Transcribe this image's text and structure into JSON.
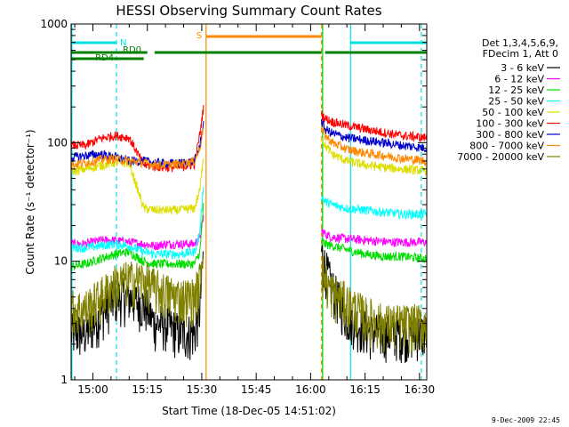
{
  "chart_data": {
    "type": "line",
    "title": "HESSI Observing Summary Count Rates",
    "xlabel": "Start Time (18-Dec-05 14:51:02)",
    "ylabel": "Count Rate (s⁻¹ detector⁻¹)",
    "yscale": "log",
    "ylim": [
      1,
      1000
    ],
    "y_ticks": [
      "1",
      "10",
      "100",
      "1000"
    ],
    "x_range_minutes": [
      54.0,
      152.0
    ],
    "x_ticks": [
      {
        "label": "15:00",
        "min": 60
      },
      {
        "label": "15:15",
        "min": 75
      },
      {
        "label": "15:30",
        "min": 90
      },
      {
        "label": "15:45",
        "min": 105
      },
      {
        "label": "16:00",
        "min": 120
      },
      {
        "label": "16:15",
        "min": 135
      },
      {
        "label": "16:30",
        "min": 150
      }
    ],
    "legend_header": [
      "Det 1,3,4,5,6,9,",
      "FDecim 1, Att 0"
    ],
    "legend_placement": "right",
    "series": [
      {
        "name": "3 - 6 keV",
        "color": "#000000",
        "segments": [
          [
            [
              54,
              2.5
            ],
            [
              58,
              2.5
            ],
            [
              62,
              3.5
            ],
            [
              66,
              5
            ],
            [
              70,
              5
            ],
            [
              73,
              4.5
            ],
            [
              75,
              4
            ],
            [
              77,
              3
            ],
            [
              80,
              3
            ],
            [
              84,
              2.5
            ],
            [
              88,
              2.5
            ],
            [
              89.5,
              4
            ],
            [
              90.5,
              12
            ]
          ],
          [
            [
              123,
              12
            ],
            [
              124,
              9
            ],
            [
              126,
              6
            ],
            [
              128,
              4.5
            ],
            [
              130,
              3.5
            ],
            [
              133,
              3
            ],
            [
              137,
              2.5
            ],
            [
              142,
              2.5
            ],
            [
              145,
              2.5
            ],
            [
              152,
              2.5
            ]
          ]
        ]
      },
      {
        "name": "6 - 12 keV",
        "color": "#ff00ff",
        "segments": [
          [
            [
              54,
              14
            ],
            [
              58,
              14
            ],
            [
              62,
              15
            ],
            [
              66,
              15
            ],
            [
              70,
              14.5
            ],
            [
              74,
              14
            ],
            [
              77,
              13.5
            ],
            [
              80,
              14
            ],
            [
              84,
              14
            ],
            [
              88,
              14
            ],
            [
              89.5,
              16
            ],
            [
              90.5,
              24
            ]
          ],
          [
            [
              123,
              18
            ],
            [
              124,
              17
            ],
            [
              126,
              16
            ],
            [
              130,
              15.5
            ],
            [
              136,
              15
            ],
            [
              142,
              14.5
            ],
            [
              148,
              14.5
            ],
            [
              152,
              14.5
            ]
          ]
        ]
      },
      {
        "name": "12 - 25 keV",
        "color": "#00dd00",
        "segments": [
          [
            [
              54,
              9
            ],
            [
              58,
              9.5
            ],
            [
              62,
              10.5
            ],
            [
              66,
              11.5
            ],
            [
              70,
              12
            ],
            [
              74,
              10
            ],
            [
              77,
              9.5
            ],
            [
              80,
              9.5
            ],
            [
              84,
              9.5
            ],
            [
              88,
              9.5
            ],
            [
              89.5,
              12
            ],
            [
              90.5,
              30
            ]
          ],
          [
            [
              123,
              15
            ],
            [
              124,
              14
            ],
            [
              126,
              13.5
            ],
            [
              130,
              12.5
            ],
            [
              135,
              11.5
            ],
            [
              140,
              11
            ],
            [
              145,
              11
            ],
            [
              152,
              10.5
            ]
          ]
        ]
      },
      {
        "name": "25 - 50 keV",
        "color": "#00ffff",
        "segments": [
          [
            [
              54,
              13
            ],
            [
              58,
              13
            ],
            [
              62,
              13.5
            ],
            [
              66,
              14
            ],
            [
              70,
              13.5
            ],
            [
              74,
              12
            ],
            [
              77,
              11.5
            ],
            [
              80,
              11.5
            ],
            [
              84,
              11.5
            ],
            [
              88,
              12
            ],
            [
              89.5,
              18
            ],
            [
              90.5,
              45
            ]
          ],
          [
            [
              123,
              35
            ],
            [
              124,
              32
            ],
            [
              126,
              30
            ],
            [
              130,
              28
            ],
            [
              135,
              27
            ],
            [
              140,
              26
            ],
            [
              145,
              25
            ],
            [
              152,
              25
            ]
          ]
        ]
      },
      {
        "name": "50 - 100 keV",
        "color": "#dddd00",
        "segments": [
          [
            [
              54,
              57
            ],
            [
              58,
              60
            ],
            [
              62,
              64
            ],
            [
              66,
              68
            ],
            [
              70,
              67
            ],
            [
              74,
              28
            ],
            [
              77,
              27
            ],
            [
              80,
              27
            ],
            [
              84,
              27
            ],
            [
              88,
              28
            ],
            [
              89.5,
              40
            ],
            [
              90.5,
              80
            ]
          ],
          [
            [
              123,
              110
            ],
            [
              124,
              95
            ],
            [
              126,
              80
            ],
            [
              130,
              70
            ],
            [
              135,
              65
            ],
            [
              140,
              62
            ],
            [
              145,
              60
            ],
            [
              152,
              58
            ]
          ]
        ]
      },
      {
        "name": "100 - 300 keV",
        "color": "#ff0000",
        "segments": [
          [
            [
              54,
              95
            ],
            [
              58,
              95
            ],
            [
              62,
              108
            ],
            [
              66,
              115
            ],
            [
              70,
              110
            ],
            [
              74,
              65
            ],
            [
              77,
              63
            ],
            [
              80,
              62
            ],
            [
              84,
              62
            ],
            [
              88,
              66
            ],
            [
              89.5,
              120
            ],
            [
              90.5,
              200
            ]
          ],
          [
            [
              123,
              175
            ],
            [
              124,
              160
            ],
            [
              126,
              150
            ],
            [
              130,
              140
            ],
            [
              135,
              130
            ],
            [
              140,
              122
            ],
            [
              145,
              115
            ],
            [
              152,
              110
            ]
          ]
        ]
      },
      {
        "name": "300 - 800 keV",
        "color": "#0000cc",
        "segments": [
          [
            [
              54,
              75
            ],
            [
              58,
              78
            ],
            [
              62,
              80
            ],
            [
              66,
              76
            ],
            [
              70,
              70
            ],
            [
              74,
              70
            ],
            [
              77,
              68
            ],
            [
              80,
              67
            ],
            [
              84,
              67
            ],
            [
              88,
              70
            ],
            [
              89.5,
              95
            ],
            [
              90.5,
              150
            ]
          ],
          [
            [
              123,
              150
            ],
            [
              124,
              130
            ],
            [
              126,
              120
            ],
            [
              130,
              110
            ],
            [
              135,
              105
            ],
            [
              140,
              100
            ],
            [
              145,
              95
            ],
            [
              152,
              90
            ]
          ]
        ]
      },
      {
        "name": "800 - 7000 keV",
        "color": "#ff8800",
        "segments": [
          [
            [
              54,
              65
            ],
            [
              58,
              68
            ],
            [
              62,
              72
            ],
            [
              66,
              73
            ],
            [
              70,
              70
            ],
            [
              74,
              68
            ],
            [
              77,
              65
            ],
            [
              80,
              65
            ],
            [
              84,
              66
            ],
            [
              88,
              70
            ],
            [
              89.5,
              90
            ],
            [
              90.5,
              140
            ]
          ],
          [
            [
              123,
              130
            ],
            [
              124,
              115
            ],
            [
              126,
              100
            ],
            [
              130,
              88
            ],
            [
              135,
              82
            ],
            [
              140,
              78
            ],
            [
              145,
              74
            ],
            [
              152,
              70
            ]
          ]
        ]
      },
      {
        "name": "7000 - 20000 keV",
        "color": "#808000",
        "segments": [
          [
            [
              54,
              4
            ],
            [
              58,
              4
            ],
            [
              62,
              5
            ],
            [
              66,
              6.5
            ],
            [
              70,
              7
            ],
            [
              74,
              7
            ],
            [
              77,
              6
            ],
            [
              80,
              5.5
            ],
            [
              84,
              5
            ],
            [
              88,
              5
            ],
            [
              89.5,
              7
            ],
            [
              90.5,
              14
            ]
          ],
          [
            [
              123,
              9
            ],
            [
              124,
              7
            ],
            [
              126,
              5.5
            ],
            [
              130,
              4.5
            ],
            [
              135,
              3.5
            ],
            [
              140,
              3
            ],
            [
              145,
              3
            ],
            [
              152,
              3
            ]
          ]
        ]
      }
    ],
    "markers": {
      "lines": [
        {
          "min": 54.2,
          "color": "#00e0e0",
          "style": "solid"
        },
        {
          "min": 66.5,
          "color": "#00e0e0",
          "style": "dashed"
        },
        {
          "min": 91.2,
          "color": "#ff8800",
          "style": "solid"
        },
        {
          "min": 123.0,
          "color": "#ff8800",
          "style": "dashed"
        },
        {
          "min": 123.3,
          "color": "#00cc00",
          "style": "solid"
        },
        {
          "min": 131.0,
          "color": "#00e0e0",
          "style": "solid"
        },
        {
          "min": 150.5,
          "color": "#00e0e0",
          "style": "dashed"
        }
      ],
      "bars": [
        {
          "label": "N",
          "color": "#00e0e0",
          "from": 54,
          "to": 66.5,
          "level": 1
        },
        {
          "label": "",
          "color": "#00e0e0",
          "from": 131,
          "to": 152,
          "level": 1
        },
        {
          "label": "S",
          "color": "#ff8800",
          "from": 91.2,
          "to": 123,
          "level": 0
        },
        {
          "label": "RD0",
          "color": "#008000",
          "from": 54,
          "to": 75,
          "level": 2
        },
        {
          "label": "",
          "color": "#008000",
          "from": 77,
          "to": 123,
          "level": 2
        },
        {
          "label": "",
          "color": "#008000",
          "from": 124,
          "to": 152,
          "level": 2
        },
        {
          "label": "RD4",
          "color": "#008000",
          "from": 54,
          "to": 74,
          "level": 3
        }
      ]
    }
  },
  "footer": {
    "date_stamp": "9-Dec-2009 22:45"
  }
}
